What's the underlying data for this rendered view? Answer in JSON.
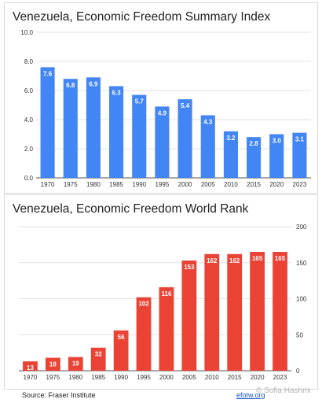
{
  "footer": {
    "source": "Source: Fraser Institute",
    "site": "efotw.org",
    "watermark": "© Sofia Hashmi"
  },
  "colors": {
    "index_bars": "#4285f4",
    "rank_bars": "#ea4335",
    "grid": "#e3e3e3",
    "axis": "#555555"
  },
  "chart_data": [
    {
      "type": "bar",
      "title": "Venezuela, Economic Freedom Summary Index",
      "xlabel": "",
      "ylabel": "",
      "categories": [
        "1970",
        "1975",
        "1980",
        "1985",
        "1990",
        "1995",
        "2000",
        "2005",
        "2010",
        "2015",
        "2020",
        "2023"
      ],
      "values": [
        7.6,
        6.8,
        6.9,
        6.3,
        5.7,
        4.9,
        5.4,
        4.3,
        3.2,
        2.8,
        3.0,
        3.1
      ],
      "data_labels": [
        "7.6",
        "6.8",
        "6.9",
        "6.3",
        "5.7",
        "4.9",
        "5.4",
        "4.3",
        "3.2",
        "2.8",
        "3.0",
        "3.1"
      ],
      "ylim": [
        0,
        10
      ],
      "yticks": [
        "0.0",
        "2.0",
        "4.0",
        "6.0",
        "8.0",
        "10.0"
      ],
      "ytick_values": [
        0,
        2,
        4,
        6,
        8,
        10
      ],
      "y_axis_side": "left",
      "grid": true
    },
    {
      "type": "bar",
      "title": "Venezuela, Economic Freedom World Rank",
      "xlabel": "",
      "ylabel": "",
      "categories": [
        "1970",
        "1975",
        "1980",
        "1985",
        "1990",
        "1995",
        "2000",
        "2005",
        "2010",
        "2015",
        "2020",
        "2023"
      ],
      "values": [
        13,
        18,
        19,
        32,
        56,
        102,
        116,
        153,
        162,
        162,
        165,
        165
      ],
      "data_labels": [
        "13",
        "18",
        "19",
        "32",
        "56",
        "102",
        "116",
        "153",
        "162",
        "162",
        "165",
        "165"
      ],
      "ylim": [
        0,
        200
      ],
      "yticks": [
        "0",
        "50",
        "100",
        "150",
        "200"
      ],
      "ytick_values": [
        0,
        50,
        100,
        150,
        200
      ],
      "y_axis_side": "right",
      "grid": true
    }
  ]
}
